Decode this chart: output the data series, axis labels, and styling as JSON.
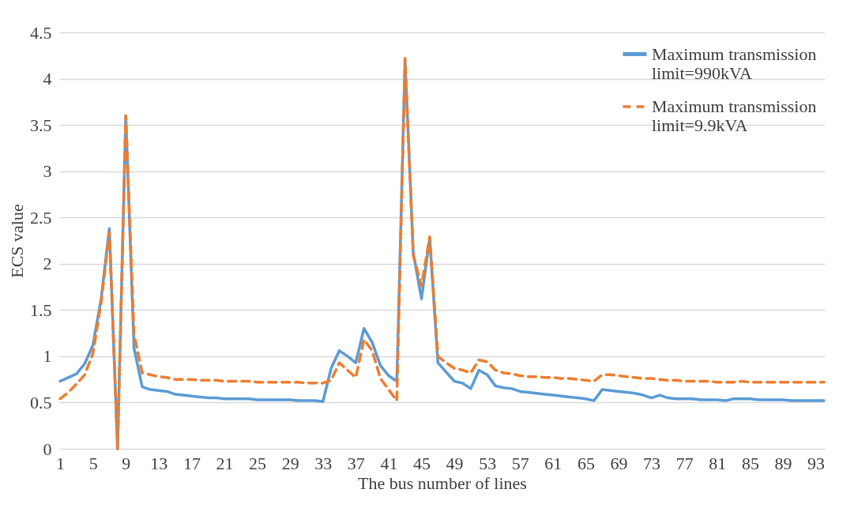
{
  "chart_data": {
    "type": "line",
    "xlabel": "The bus number of lines",
    "ylabel": "ECS value",
    "categories": [
      "1",
      null,
      null,
      null,
      "5",
      null,
      null,
      null,
      "9",
      null,
      null,
      null,
      "13",
      null,
      null,
      null,
      "17",
      null,
      null,
      null,
      "21",
      null,
      null,
      null,
      "25",
      null,
      null,
      null,
      "29",
      null,
      null,
      null,
      "33",
      null,
      null,
      null,
      "37",
      null,
      null,
      null,
      "41",
      null,
      null,
      null,
      "45",
      null,
      null,
      null,
      "49",
      null,
      null,
      null,
      "53",
      null,
      null,
      null,
      "57",
      null,
      null,
      null,
      "61",
      null,
      null,
      null,
      "65",
      null,
      null,
      null,
      "69",
      null,
      null,
      null,
      "73",
      null,
      null,
      null,
      "77",
      null,
      null,
      null,
      "81",
      null,
      null,
      null,
      "85",
      null,
      null,
      null,
      "89",
      null,
      null,
      null,
      "93",
      null
    ],
    "ylim": [
      0,
      4.5
    ],
    "yticks": [
      0,
      0.5,
      1,
      1.5,
      2,
      2.5,
      3,
      3.5,
      4,
      4.5
    ],
    "grid": "y",
    "legend": "top right",
    "series": [
      {
        "name": "Maximum transmission limit=990kVA",
        "color": "#5b9bd5",
        "line_style": "solid",
        "values": [
          0.73,
          0.77,
          0.81,
          0.92,
          1.12,
          1.62,
          2.38,
          0,
          3.6,
          1.09,
          0.67,
          0.64,
          0.63,
          0.62,
          0.59,
          0.58,
          0.57,
          0.56,
          0.55,
          0.55,
          0.54,
          0.54,
          0.54,
          0.54,
          0.53,
          0.53,
          0.53,
          0.53,
          0.53,
          0.52,
          0.52,
          0.52,
          0.51,
          0.87,
          1.06,
          1.0,
          0.93,
          1.3,
          1.15,
          0.9,
          0.79,
          0.73,
          4.2,
          2.12,
          1.62,
          2.28,
          0.93,
          0.83,
          0.73,
          0.71,
          0.65,
          0.85,
          0.8,
          0.68,
          0.66,
          0.65,
          0.62,
          0.61,
          0.6,
          0.59,
          0.58,
          0.57,
          0.56,
          0.55,
          0.54,
          0.52,
          0.64,
          0.63,
          0.62,
          0.61,
          0.6,
          0.58,
          0.55,
          0.58,
          0.55,
          0.54,
          0.54,
          0.54,
          0.53,
          0.53,
          0.53,
          0.52,
          0.54,
          0.54,
          0.54,
          0.53,
          0.53,
          0.53,
          0.53,
          0.52,
          0.52,
          0.52,
          0.52,
          0.52
        ]
      },
      {
        "name": "Maximum transmission limit=9.9kVA",
        "color": "#ed7d31",
        "line_style": "dashed",
        "values": [
          0.54,
          0.61,
          0.7,
          0.8,
          1.03,
          1.58,
          2.34,
          0,
          3.6,
          1.24,
          0.82,
          0.8,
          0.78,
          0.77,
          0.75,
          0.75,
          0.75,
          0.74,
          0.74,
          0.74,
          0.73,
          0.73,
          0.73,
          0.73,
          0.72,
          0.72,
          0.72,
          0.72,
          0.72,
          0.72,
          0.71,
          0.71,
          0.71,
          0.74,
          0.93,
          0.85,
          0.77,
          1.18,
          1.06,
          0.76,
          0.64,
          0.52,
          4.22,
          2.09,
          1.76,
          2.29,
          1.0,
          0.93,
          0.87,
          0.85,
          0.82,
          0.96,
          0.94,
          0.85,
          0.82,
          0.81,
          0.79,
          0.78,
          0.78,
          0.77,
          0.77,
          0.76,
          0.76,
          0.75,
          0.74,
          0.73,
          0.8,
          0.8,
          0.79,
          0.78,
          0.77,
          0.76,
          0.76,
          0.75,
          0.74,
          0.74,
          0.73,
          0.73,
          0.73,
          0.73,
          0.72,
          0.72,
          0.72,
          0.73,
          0.72,
          0.72,
          0.72,
          0.72,
          0.72,
          0.72,
          0.72,
          0.72,
          0.72,
          0.72
        ]
      }
    ]
  }
}
